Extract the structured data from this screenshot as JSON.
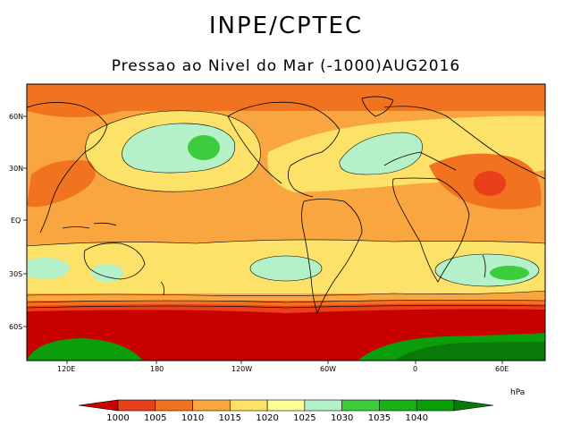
{
  "title": "INPE/CPTEC",
  "subtitle": "Pressao ao Nivel do Mar (-1000)AUG2016",
  "map": {
    "lat_labels": [
      "60N",
      "30N",
      "EQ",
      "30S",
      "60S"
    ],
    "lon_labels": [
      "120E",
      "180",
      "120W",
      "60W",
      "0",
      "60E"
    ]
  },
  "colorbar": {
    "unit": "hPa",
    "levels": [
      "1000",
      "1005",
      "1010",
      "1015",
      "1020",
      "1025",
      "1030",
      "1035",
      "1040"
    ],
    "colors": [
      "#c80000",
      "#e8401a",
      "#f2731f",
      "#f9a640",
      "#fde26a",
      "#fdfd96",
      "#b4f0c8",
      "#3ccc3c",
      "#18b218",
      "#0b9e0b",
      "#087a08"
    ]
  }
}
